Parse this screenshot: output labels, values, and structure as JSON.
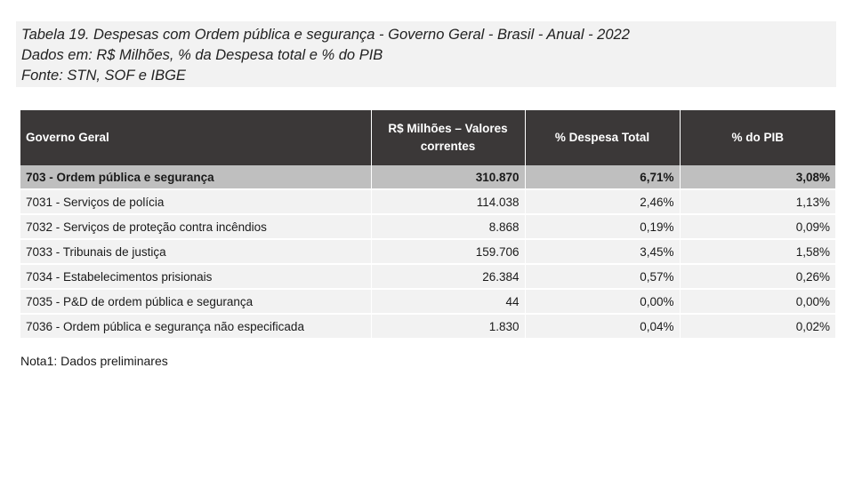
{
  "caption": {
    "line1": "Tabela 19. Despesas com Ordem pública e segurança - Governo Geral - Brasil - Anual - 2022",
    "line2": "Dados em: R$ Milhões, % da Despesa total e % do PIB",
    "line3": "Fonte: STN, SOF e IBGE"
  },
  "table": {
    "headers": [
      "Governo Geral",
      "R$ Milhões – Valores correntes",
      "% Despesa Total",
      "% do PIB"
    ],
    "rows": [
      [
        "703 - Ordem pública e segurança",
        "310.870",
        "6,71%",
        "3,08%"
      ],
      [
        "7031 - Serviços de polícia",
        "114.038",
        "2,46%",
        "1,13%"
      ],
      [
        "7032 - Serviços de proteção contra incêndios",
        "8.868",
        "0,19%",
        "0,09%"
      ],
      [
        "7033 - Tribunais de justiça",
        "159.706",
        "3,45%",
        "1,58%"
      ],
      [
        "7034 - Estabelecimentos prisionais",
        "26.384",
        "0,57%",
        "0,26%"
      ],
      [
        "7035 - P&D de ordem pública e segurança",
        "44",
        "0,00%",
        "0,00%"
      ],
      [
        "7036 - Ordem pública e segurança não especificada",
        "1.830",
        "0,04%",
        "0,02%"
      ]
    ]
  },
  "note": "Nota1: Dados preliminares",
  "colors": {
    "header_bg": "#3b3838",
    "total_row_bg": "#bfbfbf",
    "row_bg": "#f2f2f2",
    "caption_bg": "#f2f2f2"
  }
}
